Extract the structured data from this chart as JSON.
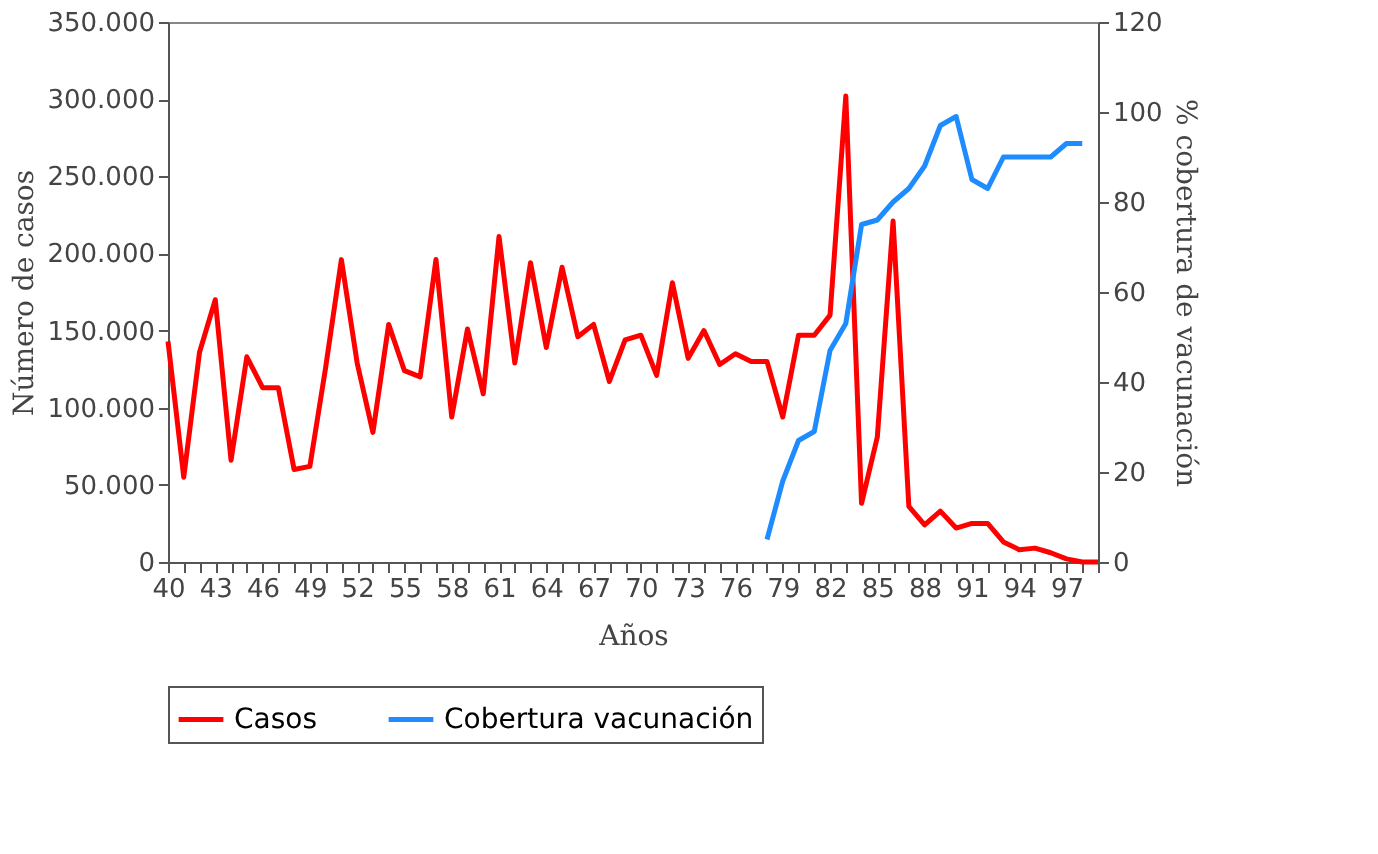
{
  "chart_data": {
    "type": "line",
    "xlabel": "Años",
    "ylabel": "Número de casos",
    "y2label": "% cobertura de vacunación",
    "categories": [
      "40",
      null,
      null,
      "43",
      null,
      null,
      "46",
      null,
      null,
      "49",
      null,
      null,
      "52",
      null,
      null,
      "55",
      null,
      null,
      "58",
      null,
      null,
      "61",
      null,
      null,
      "64",
      null,
      null,
      "67",
      null,
      null,
      "70",
      null,
      null,
      "73",
      null,
      null,
      "76",
      null,
      null,
      "79",
      null,
      null,
      "82",
      null,
      null,
      "85",
      null,
      null,
      "88",
      null,
      null,
      "91",
      null,
      null,
      "94",
      null,
      null,
      "97",
      null,
      null
    ],
    "series": [
      {
        "name": "Casos",
        "color": "#ff0000",
        "values": [
          143000,
          55000,
          136000,
          170000,
          66000,
          133000,
          113000,
          113000,
          60000,
          62000,
          126000,
          196000,
          129000,
          84000,
          154000,
          124000,
          120000,
          196000,
          94000,
          151000,
          109000,
          211000,
          129000,
          194000,
          139000,
          191000,
          146000,
          154000,
          117000,
          144000,
          147000,
          121000,
          181000,
          132000,
          150000,
          128000,
          135000,
          130000,
          130000,
          94000,
          147000,
          147000,
          160000,
          302000,
          38000,
          81000,
          221000,
          36000,
          24000,
          33000,
          22000,
          25000,
          25000,
          13000,
          8000,
          9000,
          6000,
          2000,
          0,
          0
        ]
      },
      {
        "name": "Cobertura vacunación",
        "color": "#1e8cff",
        "axis": "y2",
        "values": [
          null,
          null,
          null,
          null,
          null,
          null,
          null,
          null,
          null,
          null,
          null,
          null,
          null,
          null,
          null,
          null,
          null,
          null,
          null,
          null,
          null,
          null,
          null,
          null,
          null,
          null,
          null,
          null,
          null,
          null,
          null,
          null,
          null,
          null,
          null,
          null,
          null,
          null,
          5,
          18,
          27,
          29,
          47,
          53,
          75,
          76,
          80,
          83,
          88,
          97,
          99,
          85,
          83,
          90,
          90,
          90,
          90,
          93,
          93,
          null
        ]
      }
    ],
    "ylim": [
      0,
      350000
    ],
    "yticks": [
      0,
      {
        "value": 50000,
        "label": "50.000"
      },
      {
        "value": 100000,
        "label": "100.000"
      },
      {
        "value": 150000,
        "label": "150.000"
      },
      {
        "value": 200000,
        "label": "200.000"
      },
      {
        "value": 250000,
        "label": "250.000"
      },
      {
        "value": 300000,
        "label": "300.000"
      },
      {
        "value": 350000,
        "label": "350.000"
      }
    ],
    "y2lim": [
      0,
      120
    ],
    "y2ticks": [
      0,
      20,
      40,
      60,
      80,
      100,
      120
    ],
    "grid": false,
    "legend": "bottom",
    "line_style": "solid",
    "marker": "none"
  }
}
